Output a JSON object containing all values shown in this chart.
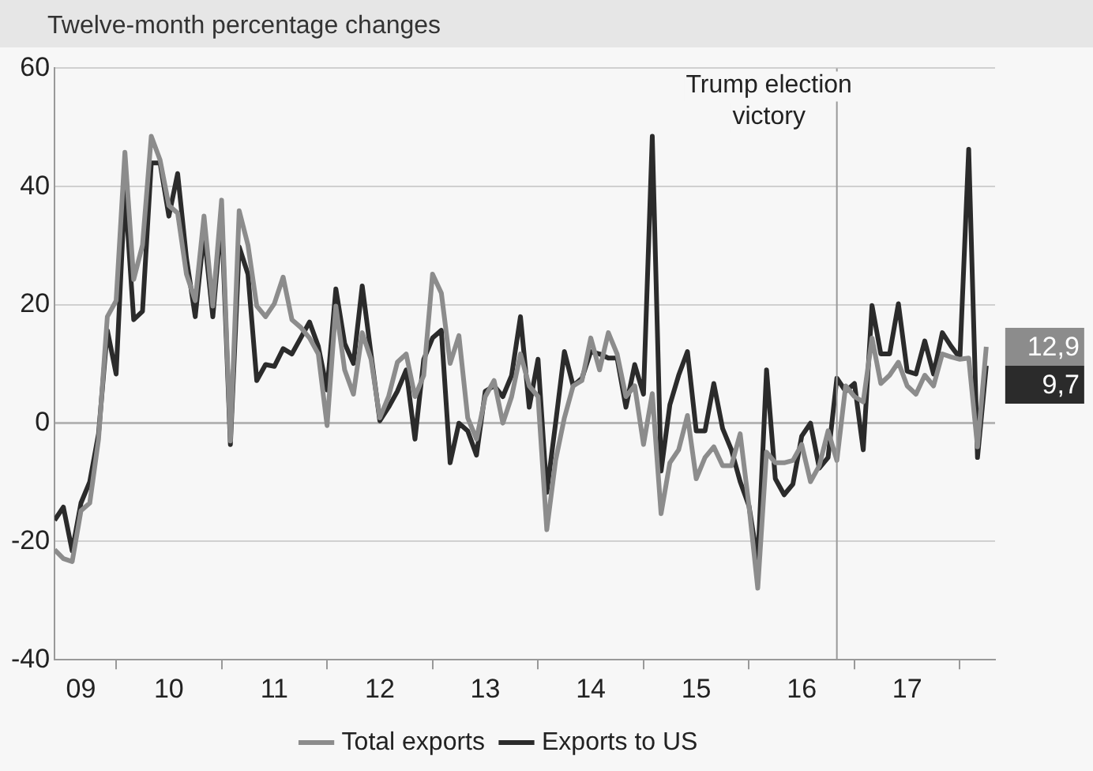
{
  "chart_data": {
    "type": "line",
    "subtitle": "Twelve-month percentage changes",
    "x": [
      "2009-06",
      "2009-07",
      "2009-08",
      "2009-09",
      "2009-10",
      "2009-11",
      "2009-12",
      "2010-01",
      "2010-02",
      "2010-03",
      "2010-04",
      "2010-05",
      "2010-06",
      "2010-07",
      "2010-08",
      "2010-09",
      "2010-10",
      "2010-11",
      "2010-12",
      "2011-01",
      "2011-02",
      "2011-03",
      "2011-04",
      "2011-05",
      "2011-06",
      "2011-07",
      "2011-08",
      "2011-09",
      "2011-10",
      "2011-11",
      "2011-12",
      "2012-01",
      "2012-02",
      "2012-03",
      "2012-04",
      "2012-05",
      "2012-06",
      "2012-07",
      "2012-08",
      "2012-09",
      "2012-10",
      "2012-11",
      "2012-12",
      "2013-01",
      "2013-02",
      "2013-03",
      "2013-04",
      "2013-05",
      "2013-06",
      "2013-07",
      "2013-08",
      "2013-09",
      "2013-10",
      "2013-11",
      "2013-12",
      "2014-01",
      "2014-02",
      "2014-03",
      "2014-04",
      "2014-05",
      "2014-06",
      "2014-07",
      "2014-08",
      "2014-09",
      "2014-10",
      "2014-11",
      "2014-12",
      "2015-01",
      "2015-02",
      "2015-03",
      "2015-04",
      "2015-05",
      "2015-06",
      "2015-07",
      "2015-08",
      "2015-09",
      "2015-10",
      "2015-11",
      "2015-12",
      "2016-01",
      "2016-02",
      "2016-03",
      "2016-04",
      "2016-05",
      "2016-06",
      "2016-07",
      "2016-08",
      "2016-09",
      "2016-10",
      "2016-11",
      "2016-12",
      "2017-01",
      "2017-02",
      "2017-03",
      "2017-04",
      "2017-05",
      "2017-06",
      "2017-07",
      "2017-08",
      "2017-09",
      "2017-10",
      "2017-11",
      "2017-12",
      "2018-01",
      "2018-02",
      "2018-03",
      "2018-04"
    ],
    "series": [
      {
        "name": "Total exports",
        "color": "#8c8c8c",
        "values": [
          -21.4,
          -22.9,
          -23.4,
          -14.8,
          -13.5,
          -2.7,
          18,
          20.7,
          45.8,
          24.3,
          30.1,
          48.5,
          44.5,
          36.8,
          35.5,
          25.2,
          20.7,
          35,
          19.8,
          37.7,
          -3,
          35.9,
          30.1,
          19.8,
          18,
          20.2,
          24.7,
          17.5,
          16.2,
          14.4,
          11.7,
          -0.4,
          19.8,
          9,
          4.9,
          15.3,
          10.8,
          0.9,
          4.5,
          10.3,
          11.7,
          4.5,
          8.1,
          25.2,
          22,
          10.1,
          14.8,
          0.9,
          -2.7,
          4.5,
          7.2,
          0,
          4.5,
          11.7,
          6.3,
          4.5,
          -18,
          -6.3,
          0.9,
          6.3,
          7.2,
          14.4,
          9,
          15.3,
          11.7,
          4.5,
          6.3,
          -3.6,
          5,
          -15.3,
          -6.7,
          -4.5,
          1.3,
          -9.4,
          -5.8,
          -4,
          -7.2,
          -7.2,
          -1.8,
          -14,
          -27.9,
          -4.9,
          -6.7,
          -6.7,
          -6.3,
          -3.6,
          -9.9,
          -7.2,
          -1.3,
          -6.3,
          6.3,
          4.5,
          3.6,
          14.4,
          6.7,
          8.1,
          10.3,
          6.3,
          4.9,
          8.1,
          6.3,
          11.7,
          11.2,
          10.8,
          11,
          -4,
          12.9
        ]
      },
      {
        "name": "Exports to US",
        "color": "#2b2b2b",
        "values": [
          -16.4,
          -14.2,
          -21.6,
          -13.5,
          -9.9,
          -1.8,
          15.7,
          8.3,
          39.5,
          17.5,
          18.9,
          44,
          44,
          35,
          42.2,
          27.9,
          18,
          32.3,
          18,
          35,
          -3.6,
          29.8,
          25.2,
          7.2,
          9.9,
          9.6,
          12.6,
          11.7,
          14.4,
          17.1,
          13,
          5.6,
          22.7,
          13.5,
          10.1,
          23.2,
          11.7,
          0.4,
          2.7,
          5.4,
          9,
          -2.7,
          10.8,
          14.4,
          15.7,
          -6.7,
          0,
          -1.3,
          -5.4,
          5.4,
          6.3,
          4.5,
          8.1,
          18,
          2.7,
          10.8,
          -11.7,
          0,
          12.1,
          6.3,
          7.6,
          12.1,
          11.7,
          11,
          11,
          2.7,
          9.9,
          4.9,
          48.5,
          -8.1,
          3.1,
          8.1,
          12.1,
          -1.3,
          -1.3,
          6.7,
          -0.9,
          -4.5,
          -9.9,
          -14,
          -23.4,
          9,
          -9.4,
          -12.1,
          -10.3,
          -2.2,
          0,
          -7.6,
          -5.8,
          7.6,
          5.4,
          6.7,
          -4.5,
          19.9,
          11.7,
          11.7,
          20.2,
          8.8,
          8.3,
          13.9,
          8.3,
          15.3,
          13,
          11,
          46.3,
          -5.8,
          9.7
        ]
      }
    ],
    "xlim": [
      "2009-06",
      "2018-05"
    ],
    "xticks": [
      {
        "value": "2009-09",
        "label": "09"
      },
      {
        "value": "2010",
        "label": null
      },
      {
        "value": "2010-07",
        "label": "10"
      },
      {
        "value": "2011",
        "label": null
      },
      {
        "value": "2011-07",
        "label": "11"
      },
      {
        "value": "2012",
        "label": null
      },
      {
        "value": "2012-07",
        "label": "12"
      },
      {
        "value": "2013",
        "label": null
      },
      {
        "value": "2013-07",
        "label": "13"
      },
      {
        "value": "2014",
        "label": null
      },
      {
        "value": "2014-07",
        "label": "14"
      },
      {
        "value": "2015",
        "label": null
      },
      {
        "value": "2015-07",
        "label": "15"
      },
      {
        "value": "2016",
        "label": null
      },
      {
        "value": "2016-07",
        "label": "16"
      },
      {
        "value": "2017",
        "label": null
      },
      {
        "value": "2017-07",
        "label": "17"
      },
      {
        "value": "2018",
        "label": null
      }
    ],
    "ylim": [
      -40,
      60
    ],
    "yticks": [
      -40,
      -20,
      0,
      20,
      40,
      60
    ],
    "grid": "y",
    "legend": "bottom",
    "line_style": "solid",
    "ref_lines": [
      {
        "axis": "x",
        "value": "2016-11",
        "label": "Trump election victory",
        "color": "#9a9a9a"
      }
    ],
    "annotations": [
      {
        "text": "12,9",
        "x": "2018-04",
        "y": 12.9
      },
      {
        "text": "9,7",
        "x": "2018-04",
        "y": 9.7
      }
    ]
  }
}
